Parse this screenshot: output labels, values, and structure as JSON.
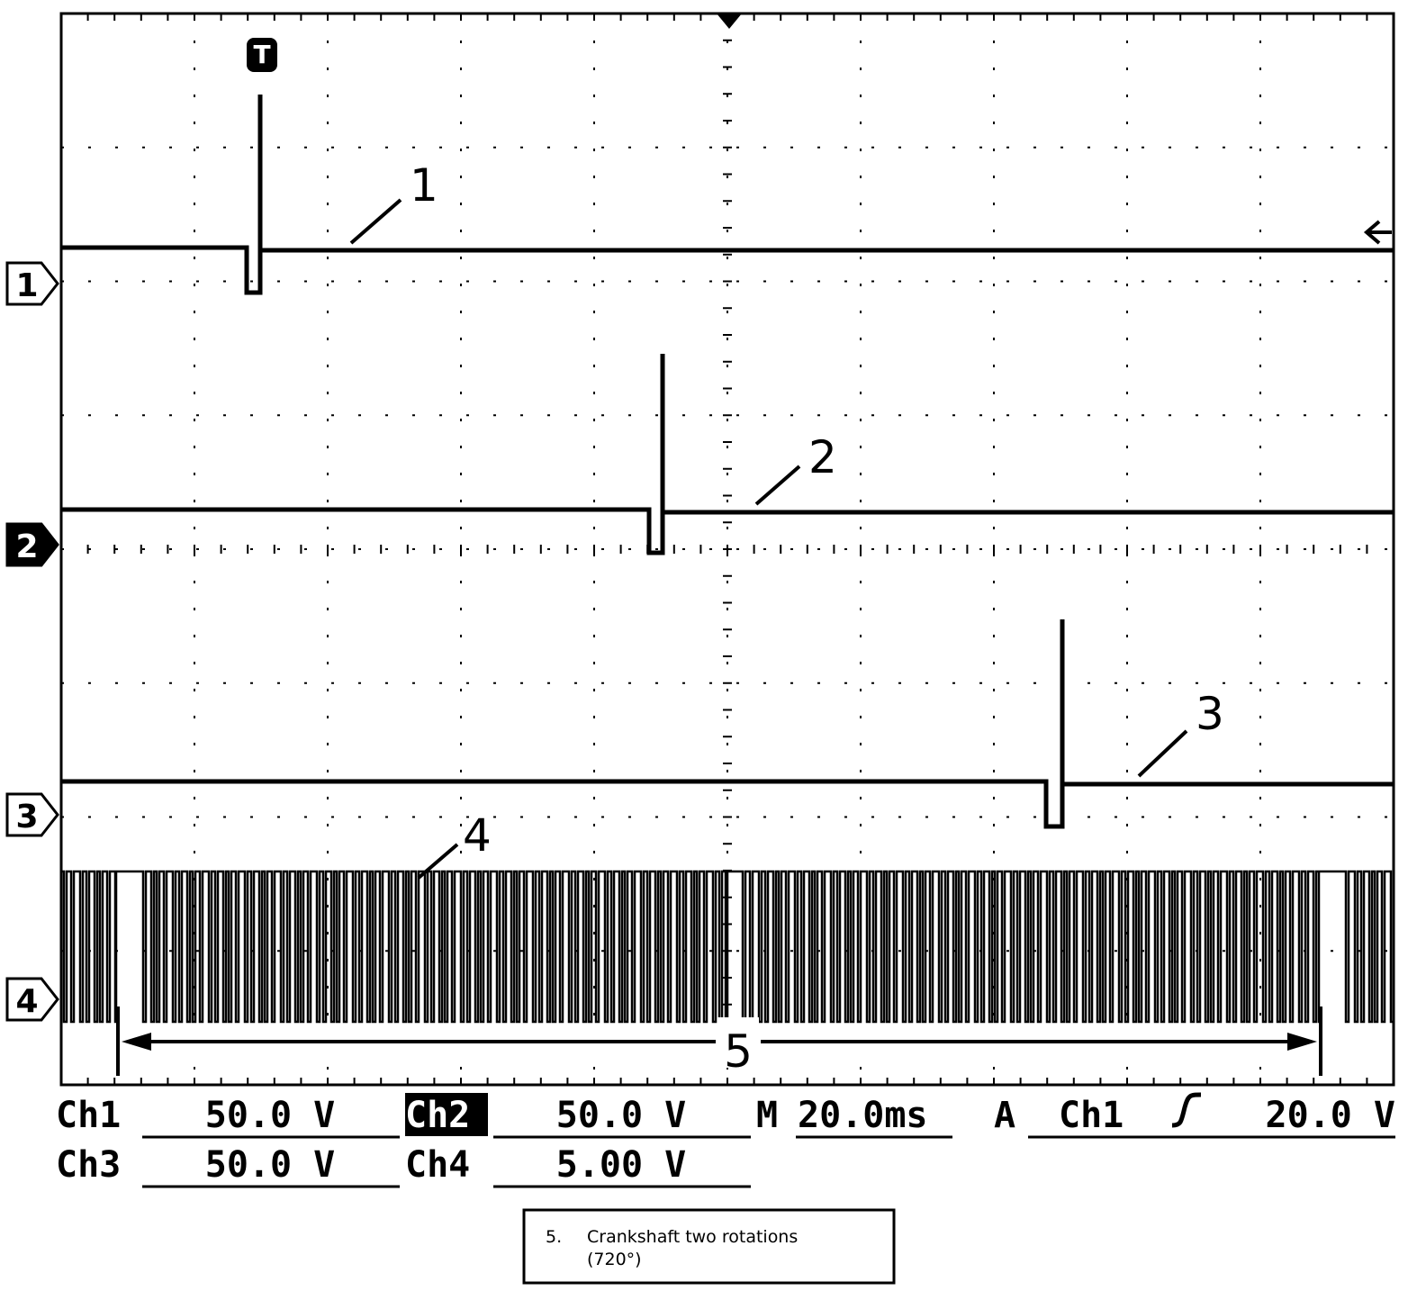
{
  "screen": {
    "trigger_marker": "T",
    "channel_markers": [
      "1",
      "2",
      "3",
      "4"
    ],
    "callouts": [
      "1",
      "2",
      "3",
      "4",
      "5"
    ]
  },
  "readouts": [
    {
      "channel": "Ch1",
      "scale": "50.0 V"
    },
    {
      "channel": "Ch2",
      "scale": "50.0 V"
    },
    {
      "channel": "Ch3",
      "scale": "50.0 V"
    },
    {
      "channel": "Ch4",
      "scale": "5.00 V"
    }
  ],
  "timebase": {
    "label": "M",
    "value": "20.0ms"
  },
  "trigger": {
    "label": "A",
    "source": "Ch1",
    "level": "20.0 V"
  },
  "caption": {
    "number": "5.",
    "text": "Crankshaft two rotations",
    "subtext": "(720°)"
  }
}
